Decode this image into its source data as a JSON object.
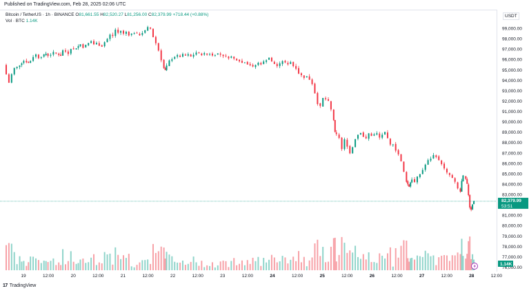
{
  "header": {
    "published": "Published on TradingView.com, Feb 28, 2025 02:06 UTC"
  },
  "legend": {
    "title": "Bitcoin / TetherUS · 1h · BINANCE",
    "open_label": "O",
    "open": "81,661.55",
    "high_label": "H",
    "high": "82,520.27",
    "low_label": "L",
    "low": "81,256.00",
    "close_label": "C",
    "close": "82,379.99",
    "change": "+718.44 (+0.88%)"
  },
  "vol_legend": {
    "label": "Vol · BTC",
    "value": "1.14K"
  },
  "currency": "USDT",
  "price_badge": {
    "price": "82,379.99",
    "countdown": "53:51"
  },
  "vol_badge": "1.14K",
  "footer": {
    "brand": "TradingView"
  },
  "colors": {
    "up": "#089981",
    "down": "#f23645",
    "up_vol": "#8fd4ca",
    "down_vol": "#f7a1a7",
    "price_line": "#089981"
  },
  "chart_data": {
    "type": "candlestick",
    "ylim": [
      76000,
      99500
    ],
    "y_ticks": [
      "99,000.00",
      "98,000.00",
      "97,000.00",
      "96,000.00",
      "95,000.00",
      "94,000.00",
      "93,000.00",
      "92,000.00",
      "91,000.00",
      "90,000.00",
      "89,000.00",
      "88,000.00",
      "87,000.00",
      "86,000.00",
      "85,000.00",
      "84,000.00",
      "83,000.00",
      "81,000.00",
      "80,000.00",
      "79,000.00",
      "78,000.00",
      "77,000.00",
      "76,000.00"
    ],
    "x_ticks": [
      "19",
      "12:00",
      "20",
      "12:00",
      "21",
      "12:00",
      "22",
      "12:00",
      "23",
      "12:00",
      "24",
      "12:00",
      "25",
      "12:00",
      "26",
      "12:00",
      "27",
      "12:00",
      "28",
      "12:00"
    ],
    "x_ticks_bold": [
      "24",
      "25",
      "26",
      "27",
      "28"
    ],
    "last_price": 82379.99,
    "price_series": [
      [
        0,
        95500
      ],
      [
        4,
        94600
      ],
      [
        8,
        93800
      ],
      [
        12,
        94600
      ],
      [
        16,
        95200
      ],
      [
        20,
        95300
      ],
      [
        26,
        95700
      ],
      [
        30,
        95900
      ],
      [
        36,
        95700
      ],
      [
        40,
        95900
      ],
      [
        44,
        96300
      ],
      [
        48,
        96500
      ],
      [
        52,
        96200
      ],
      [
        56,
        96300
      ],
      [
        62,
        96600
      ],
      [
        66,
        96400
      ],
      [
        70,
        96500
      ],
      [
        74,
        96700
      ],
      [
        78,
        96600
      ],
      [
        84,
        96400
      ],
      [
        88,
        96900
      ],
      [
        92,
        96800
      ],
      [
        96,
        96600
      ],
      [
        100,
        97100
      ],
      [
        104,
        97000
      ],
      [
        110,
        97300
      ],
      [
        114,
        97500
      ],
      [
        118,
        97200
      ],
      [
        122,
        97400
      ],
      [
        126,
        97600
      ],
      [
        130,
        97800
      ],
      [
        134,
        97500
      ],
      [
        138,
        97600
      ],
      [
        142,
        97400
      ],
      [
        146,
        97300
      ],
      [
        150,
        97700
      ],
      [
        154,
        98000
      ],
      [
        158,
        98400
      ],
      [
        162,
        98300
      ],
      [
        166,
        98900
      ],
      [
        170,
        98600
      ],
      [
        174,
        98800
      ],
      [
        178,
        98500
      ],
      [
        182,
        98700
      ],
      [
        186,
        98400
      ],
      [
        190,
        98500
      ],
      [
        194,
        98600
      ],
      [
        198,
        98500
      ],
      [
        202,
        98400
      ],
      [
        206,
        98600
      ],
      [
        210,
        98800
      ],
      [
        214,
        99100
      ],
      [
        218,
        99000
      ],
      [
        222,
        98200
      ],
      [
        226,
        97600
      ],
      [
        230,
        96900
      ],
      [
        234,
        96000
      ],
      [
        236,
        95200
      ],
      [
        238,
        95000
      ],
      [
        242,
        95400
      ],
      [
        246,
        95900
      ],
      [
        250,
        96100
      ],
      [
        254,
        96300
      ],
      [
        258,
        96400
      ],
      [
        262,
        96300
      ],
      [
        266,
        96500
      ],
      [
        270,
        96400
      ],
      [
        274,
        96500
      ],
      [
        278,
        96300
      ],
      [
        282,
        96500
      ],
      [
        286,
        96700
      ],
      [
        290,
        96600
      ],
      [
        294,
        96500
      ],
      [
        298,
        96600
      ],
      [
        302,
        96500
      ],
      [
        306,
        96600
      ],
      [
        310,
        96400
      ],
      [
        314,
        96500
      ],
      [
        318,
        96600
      ],
      [
        322,
        96500
      ],
      [
        326,
        96400
      ],
      [
        330,
        96300
      ],
      [
        334,
        96200
      ],
      [
        338,
        96300
      ],
      [
        342,
        96100
      ],
      [
        346,
        96000
      ],
      [
        350,
        95900
      ],
      [
        354,
        95700
      ],
      [
        358,
        95800
      ],
      [
        362,
        95600
      ],
      [
        366,
        95500
      ],
      [
        370,
        95300
      ],
      [
        374,
        95500
      ],
      [
        378,
        95700
      ],
      [
        382,
        95600
      ],
      [
        386,
        95800
      ],
      [
        390,
        96000
      ],
      [
        394,
        96200
      ],
      [
        398,
        95800
      ],
      [
        402,
        95600
      ],
      [
        406,
        95400
      ],
      [
        410,
        95600
      ],
      [
        414,
        95900
      ],
      [
        418,
        95700
      ],
      [
        422,
        95600
      ],
      [
        426,
        95800
      ],
      [
        430,
        95400
      ],
      [
        434,
        95200
      ],
      [
        438,
        94700
      ],
      [
        442,
        94500
      ],
      [
        446,
        94300
      ],
      [
        450,
        94400
      ],
      [
        454,
        94100
      ],
      [
        458,
        93700
      ],
      [
        462,
        92800
      ],
      [
        466,
        91800
      ],
      [
        470,
        91500
      ],
      [
        474,
        92300
      ],
      [
        478,
        92200
      ],
      [
        482,
        92000
      ],
      [
        486,
        91200
      ],
      [
        488,
        90200
      ],
      [
        490,
        89000
      ],
      [
        494,
        88800
      ],
      [
        498,
        88500
      ],
      [
        502,
        87400
      ],
      [
        506,
        88300
      ],
      [
        510,
        87700
      ],
      [
        514,
        87000
      ],
      [
        518,
        87600
      ],
      [
        522,
        88400
      ],
      [
        526,
        88800
      ],
      [
        530,
        89000
      ],
      [
        534,
        88600
      ],
      [
        538,
        88400
      ],
      [
        542,
        88900
      ],
      [
        546,
        88700
      ],
      [
        550,
        88800
      ],
      [
        554,
        88900
      ],
      [
        558,
        88500
      ],
      [
        562,
        88800
      ],
      [
        566,
        89000
      ],
      [
        570,
        88400
      ],
      [
        574,
        87800
      ],
      [
        578,
        87900
      ],
      [
        582,
        87300
      ],
      [
        586,
        86900
      ],
      [
        590,
        86200
      ],
      [
        594,
        85200
      ],
      [
        596,
        84300
      ],
      [
        598,
        84000
      ],
      [
        600,
        83800
      ],
      [
        602,
        84200
      ],
      [
        606,
        84500
      ],
      [
        610,
        84200
      ],
      [
        614,
        84700
      ],
      [
        618,
        85000
      ],
      [
        622,
        85400
      ],
      [
        626,
        85900
      ],
      [
        630,
        86300
      ],
      [
        634,
        86500
      ],
      [
        638,
        86800
      ],
      [
        642,
        86700
      ],
      [
        646,
        86300
      ],
      [
        650,
        86000
      ],
      [
        654,
        85500
      ],
      [
        658,
        85100
      ],
      [
        662,
        84900
      ],
      [
        666,
        84600
      ],
      [
        670,
        84200
      ],
      [
        674,
        83600
      ],
      [
        676,
        83300
      ],
      [
        678,
        84300
      ],
      [
        682,
        84800
      ],
      [
        684,
        84500
      ],
      [
        686,
        84000
      ],
      [
        688,
        83000
      ],
      [
        690,
        81800
      ],
      [
        692,
        81600
      ],
      [
        694,
        82100
      ],
      [
        696,
        82380
      ]
    ]
  }
}
